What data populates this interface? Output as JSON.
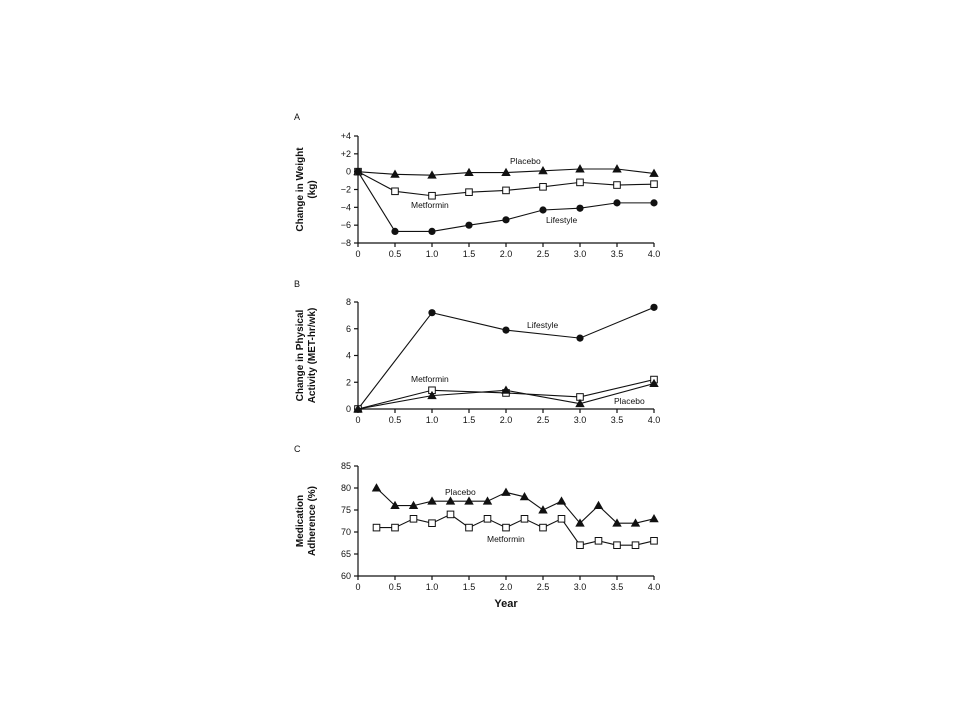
{
  "chart_data": [
    {
      "type": "line",
      "panel_letter": "A",
      "ylabel_lines": [
        "Change in Weight",
        "(kg)"
      ],
      "xlabel": "",
      "xlim": [
        0,
        4
      ],
      "ylim": [
        -8,
        4
      ],
      "x_ticks": [
        0,
        0.5,
        1,
        1.5,
        2,
        2.5,
        3,
        3.5,
        4
      ],
      "x_tick_labels": [
        "0",
        "0.5",
        "1.0",
        "1.5",
        "2.0",
        "2.5",
        "3.0",
        "3.5",
        "4.0"
      ],
      "y_ticks": [
        4,
        2,
        0,
        -2,
        -4,
        -6,
        -8
      ],
      "y_tick_labels": [
        "+4",
        "+2",
        "0",
        "−2",
        "−4",
        "−6",
        "−8"
      ],
      "series": [
        {
          "name": "Placebo",
          "marker": "triangle-filled",
          "x": [
            0,
            0.5,
            1,
            1.5,
            2,
            2.5,
            3,
            3.5,
            4
          ],
          "y": [
            0,
            -0.3,
            -0.4,
            -0.1,
            -0.1,
            0.1,
            0.3,
            0.3,
            -0.2
          ]
        },
        {
          "name": "Metformin",
          "marker": "square-open",
          "x": [
            0,
            0.5,
            1,
            1.5,
            2,
            2.5,
            3,
            3.5,
            4
          ],
          "y": [
            0,
            -2.2,
            -2.7,
            -2.3,
            -2.1,
            -1.7,
            -1.2,
            -1.5,
            -1.4
          ]
        },
        {
          "name": "Lifestyle",
          "marker": "circle-filled",
          "x": [
            0,
            0.5,
            1,
            1.5,
            2,
            2.5,
            3,
            3.5,
            4
          ],
          "y": [
            0,
            -6.7,
            -6.7,
            -6.0,
            -5.4,
            -4.3,
            -4.1,
            -3.5,
            -3.5
          ]
        }
      ]
    },
    {
      "type": "line",
      "panel_letter": "B",
      "ylabel_lines": [
        "Change in Physical",
        "Activity (MET-hr/wk)"
      ],
      "xlabel": "",
      "xlim": [
        0,
        4
      ],
      "ylim": [
        0,
        8
      ],
      "x_ticks": [
        0,
        0.5,
        1,
        1.5,
        2,
        2.5,
        3,
        3.5,
        4
      ],
      "x_tick_labels": [
        "0",
        "0.5",
        "1.0",
        "1.5",
        "2.0",
        "2.5",
        "3.0",
        "3.5",
        "4.0"
      ],
      "y_ticks": [
        8,
        6,
        4,
        2,
        0
      ],
      "y_tick_labels": [
        "8",
        "6",
        "4",
        "2",
        "0"
      ],
      "series": [
        {
          "name": "Lifestyle",
          "marker": "circle-filled",
          "x": [
            0,
            1,
            2,
            3,
            4
          ],
          "y": [
            0,
            7.2,
            5.9,
            5.3,
            7.6
          ]
        },
        {
          "name": "Metformin",
          "marker": "square-open",
          "x": [
            0,
            1,
            2,
            3,
            4
          ],
          "y": [
            0,
            1.4,
            1.2,
            0.9,
            2.2
          ]
        },
        {
          "name": "Placebo",
          "marker": "triangle-filled",
          "x": [
            0,
            1,
            2,
            3,
            4
          ],
          "y": [
            0,
            1.0,
            1.4,
            0.4,
            1.9
          ]
        }
      ]
    },
    {
      "type": "line",
      "panel_letter": "C",
      "ylabel_lines": [
        "Medication",
        "Adherence (%)"
      ],
      "xlabel": "Year",
      "xlim": [
        0,
        4
      ],
      "ylim": [
        60,
        85
      ],
      "x_ticks": [
        0,
        0.5,
        1,
        1.5,
        2,
        2.5,
        3,
        3.5,
        4
      ],
      "x_tick_labels": [
        "0",
        "0.5",
        "1.0",
        "1.5",
        "2.0",
        "2.5",
        "3.0",
        "3.5",
        "4.0"
      ],
      "y_ticks": [
        85,
        80,
        75,
        70,
        65,
        60
      ],
      "y_tick_labels": [
        "85",
        "80",
        "75",
        "70",
        "65",
        "60"
      ],
      "series": [
        {
          "name": "Placebo",
          "marker": "triangle-filled",
          "x": [
            0.25,
            0.5,
            0.75,
            1,
            1.25,
            1.5,
            1.75,
            2,
            2.25,
            2.5,
            2.75,
            3,
            3.25,
            3.5,
            3.75,
            4
          ],
          "y": [
            80,
            76,
            76,
            77,
            77,
            77,
            77,
            79,
            78,
            75,
            77,
            72,
            76,
            72,
            72,
            73
          ]
        },
        {
          "name": "Metformin",
          "marker": "square-open",
          "x": [
            0.25,
            0.5,
            0.75,
            1,
            1.25,
            1.5,
            1.75,
            2,
            2.25,
            2.5,
            2.75,
            3,
            3.25,
            3.5,
            3.75,
            4
          ],
          "y": [
            71,
            71,
            73,
            72,
            74,
            71,
            73,
            71,
            73,
            71,
            73,
            67,
            68,
            67,
            67,
            68
          ]
        }
      ]
    }
  ]
}
